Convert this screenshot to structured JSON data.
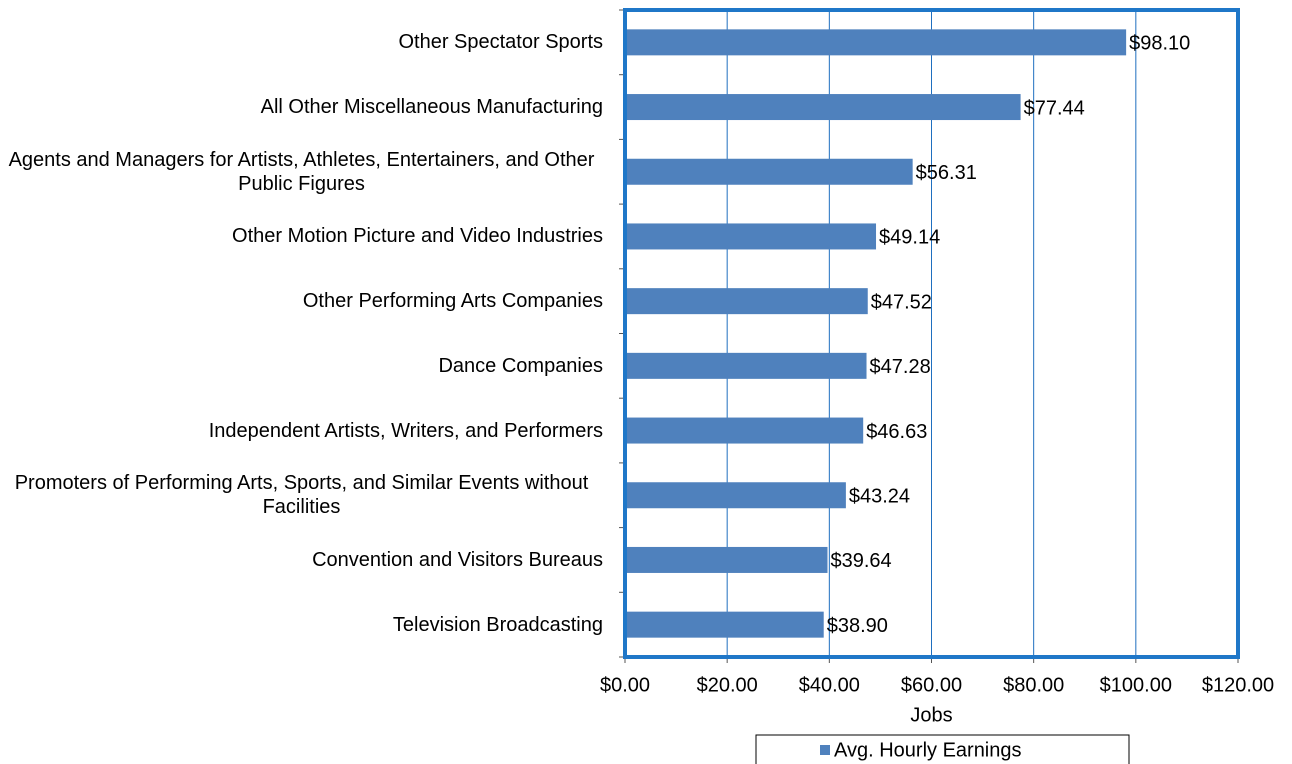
{
  "chart_data": {
    "type": "hbar",
    "x_label": "Jobs",
    "categories": [
      "Other Spectator Sports",
      "All Other Miscellaneous Manufacturing",
      "Agents and Managers for Artists, Athletes, Entertainers, and Other Public Figures",
      "Other Motion Picture and Video Industries",
      "Other Performing Arts Companies",
      "Dance Companies",
      "Independent Artists, Writers, and Performers",
      "Promoters of Performing Arts, Sports, and Similar Events without Facilities",
      "Convention and Visitors Bureaus",
      "Television Broadcasting"
    ],
    "series": [
      {
        "name": "Avg. Hourly Earnings",
        "color": "#4f81bd",
        "values": [
          98.1,
          77.44,
          56.31,
          49.14,
          47.52,
          47.28,
          46.63,
          43.24,
          39.64,
          38.9
        ],
        "value_labels": [
          "$98.10",
          "$77.44",
          "$56.31",
          "$49.14",
          "$47.52",
          "$47.28",
          "$46.63",
          "$43.24",
          "$39.64",
          "$38.90"
        ]
      }
    ],
    "xlim": [
      0,
      120
    ],
    "xticks": [
      {
        "value": 0,
        "label": "$0.00"
      },
      {
        "value": 20,
        "label": "$20.00"
      },
      {
        "value": 40,
        "label": "$40.00"
      },
      {
        "value": 60,
        "label": "$60.00"
      },
      {
        "value": 80,
        "label": "$80.00"
      },
      {
        "value": 100,
        "label": "$100.00"
      },
      {
        "value": 120,
        "label": "$120.00"
      }
    ],
    "grid": true,
    "legend": "bottom"
  }
}
